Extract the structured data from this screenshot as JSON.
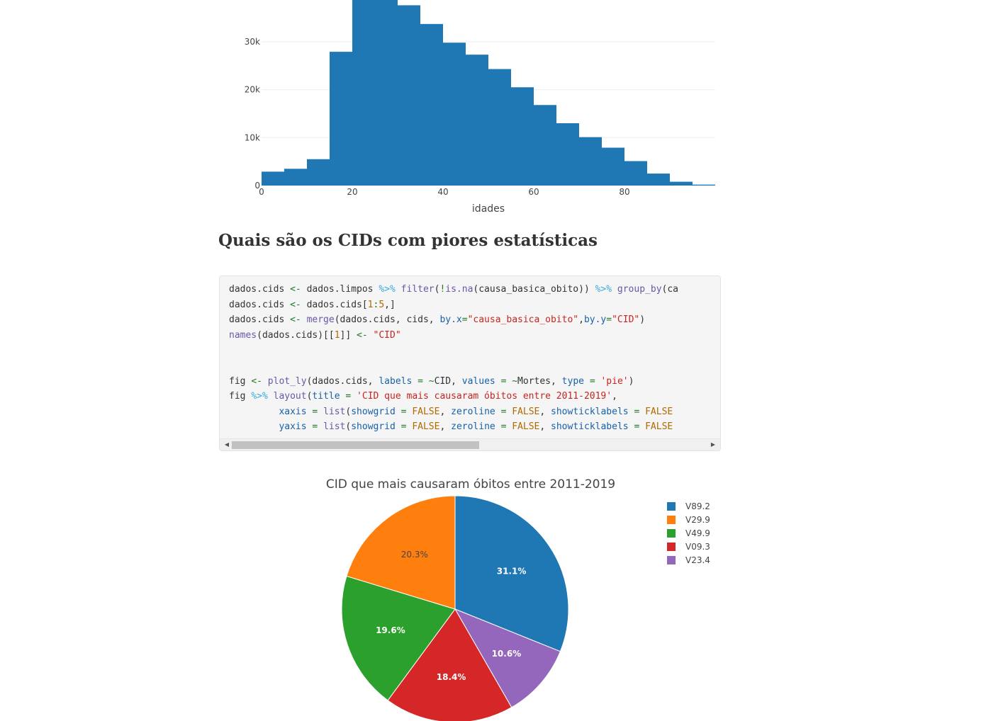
{
  "histogram": {
    "chart_data": {
      "type": "bar",
      "x": [
        2.5,
        7.5,
        12.5,
        17.5,
        22.5,
        27.5,
        32.5,
        37.5,
        42.5,
        47.5,
        52.5,
        57.5,
        62.5,
        67.5,
        72.5,
        77.5,
        82.5,
        87.5,
        92.5,
        97.5
      ],
      "values": [
        2900,
        3500,
        5500,
        27900,
        39000,
        39000,
        37600,
        33700,
        29800,
        27300,
        24300,
        20500,
        16800,
        13000,
        10100,
        7900,
        5100,
        2500,
        800,
        200
      ],
      "bin_width": 5,
      "xlabel": "idades",
      "x_ticks": [
        0,
        20,
        40,
        60,
        80
      ],
      "y_ticks": [
        0,
        10000,
        20000,
        30000
      ],
      "y_tick_labels": [
        "0",
        "10k",
        "20k",
        "30k"
      ],
      "xlim": [
        0,
        100
      ],
      "grid": true,
      "color": "#1f77b4"
    }
  },
  "section": {
    "heading": "Quais são os CIDs com piores estatísticas"
  },
  "code_block": {
    "lines": [
      [
        {
          "t": "dados.cids ",
          "c": ""
        },
        {
          "t": "<-",
          "c": "op"
        },
        {
          "t": " dados.limpos ",
          "c": ""
        },
        {
          "t": "%>%",
          "c": "pipe"
        },
        {
          "t": " ",
          "c": ""
        },
        {
          "t": "filter",
          "c": "fn"
        },
        {
          "t": "(",
          "c": ""
        },
        {
          "t": "!",
          "c": "op"
        },
        {
          "t": "is.na",
          "c": "fn"
        },
        {
          "t": "(causa_basica_obito)) ",
          "c": ""
        },
        {
          "t": "%>%",
          "c": "pipe"
        },
        {
          "t": " ",
          "c": ""
        },
        {
          "t": "group_by",
          "c": "fn"
        },
        {
          "t": "(ca",
          "c": ""
        }
      ],
      [
        {
          "t": "dados.cids ",
          "c": ""
        },
        {
          "t": "<-",
          "c": "op"
        },
        {
          "t": " dados.cids[",
          "c": ""
        },
        {
          "t": "1",
          "c": "num"
        },
        {
          "t": ":",
          "c": "op"
        },
        {
          "t": "5",
          "c": "num"
        },
        {
          "t": ",]",
          "c": ""
        }
      ],
      [
        {
          "t": "dados.cids ",
          "c": ""
        },
        {
          "t": "<-",
          "c": "op"
        },
        {
          "t": " ",
          "c": ""
        },
        {
          "t": "merge",
          "c": "fn"
        },
        {
          "t": "(dados.cids, cids, ",
          "c": ""
        },
        {
          "t": "by.x",
          "c": "kw"
        },
        {
          "t": "=",
          "c": "op"
        },
        {
          "t": "\"causa_basica_obito\"",
          "c": "str"
        },
        {
          "t": ",",
          "c": ""
        },
        {
          "t": "by.y",
          "c": "kw"
        },
        {
          "t": "=",
          "c": "op"
        },
        {
          "t": "\"CID\"",
          "c": "str"
        },
        {
          "t": ")",
          "c": ""
        }
      ],
      [
        {
          "t": "names",
          "c": "fn"
        },
        {
          "t": "(dados.cids)[[",
          "c": ""
        },
        {
          "t": "1",
          "c": "num"
        },
        {
          "t": "]] ",
          "c": ""
        },
        {
          "t": "<-",
          "c": "op"
        },
        {
          "t": " ",
          "c": ""
        },
        {
          "t": "\"CID\"",
          "c": "str"
        }
      ],
      [],
      [],
      [
        {
          "t": "fig ",
          "c": ""
        },
        {
          "t": "<-",
          "c": "op"
        },
        {
          "t": " ",
          "c": ""
        },
        {
          "t": "plot_ly",
          "c": "fn"
        },
        {
          "t": "(dados.cids, ",
          "c": ""
        },
        {
          "t": "labels",
          "c": "kw"
        },
        {
          "t": " ",
          "c": ""
        },
        {
          "t": "=",
          "c": "op"
        },
        {
          "t": " ",
          "c": ""
        },
        {
          "t": "~",
          "c": "op"
        },
        {
          "t": "CID, ",
          "c": ""
        },
        {
          "t": "values",
          "c": "kw"
        },
        {
          "t": " ",
          "c": ""
        },
        {
          "t": "=",
          "c": "op"
        },
        {
          "t": " ",
          "c": ""
        },
        {
          "t": "~",
          "c": "op"
        },
        {
          "t": "Mortes, ",
          "c": ""
        },
        {
          "t": "type",
          "c": "kw"
        },
        {
          "t": " ",
          "c": ""
        },
        {
          "t": "=",
          "c": "op"
        },
        {
          "t": " ",
          "c": ""
        },
        {
          "t": "'pie'",
          "c": "str"
        },
        {
          "t": ")",
          "c": ""
        }
      ],
      [
        {
          "t": "fig ",
          "c": ""
        },
        {
          "t": "%>%",
          "c": "pipe"
        },
        {
          "t": " ",
          "c": ""
        },
        {
          "t": "layout",
          "c": "fn"
        },
        {
          "t": "(",
          "c": ""
        },
        {
          "t": "title",
          "c": "kw"
        },
        {
          "t": " ",
          "c": ""
        },
        {
          "t": "=",
          "c": "op"
        },
        {
          "t": " ",
          "c": ""
        },
        {
          "t": "'CID que mais causaram óbitos entre 2011-2019'",
          "c": "str"
        },
        {
          "t": ",",
          "c": ""
        }
      ],
      [
        {
          "t": "         ",
          "c": ""
        },
        {
          "t": "xaxis",
          "c": "kw"
        },
        {
          "t": " ",
          "c": ""
        },
        {
          "t": "=",
          "c": "op"
        },
        {
          "t": " ",
          "c": ""
        },
        {
          "t": "list",
          "c": "fn"
        },
        {
          "t": "(",
          "c": ""
        },
        {
          "t": "showgrid",
          "c": "kw"
        },
        {
          "t": " ",
          "c": ""
        },
        {
          "t": "=",
          "c": "op"
        },
        {
          "t": " ",
          "c": ""
        },
        {
          "t": "FALSE",
          "c": "const"
        },
        {
          "t": ", ",
          "c": ""
        },
        {
          "t": "zeroline",
          "c": "kw"
        },
        {
          "t": " ",
          "c": ""
        },
        {
          "t": "=",
          "c": "op"
        },
        {
          "t": " ",
          "c": ""
        },
        {
          "t": "FALSE",
          "c": "const"
        },
        {
          "t": ", ",
          "c": ""
        },
        {
          "t": "showticklabels",
          "c": "kw"
        },
        {
          "t": " ",
          "c": ""
        },
        {
          "t": "=",
          "c": "op"
        },
        {
          "t": " ",
          "c": ""
        },
        {
          "t": "FALSE",
          "c": "const"
        }
      ],
      [
        {
          "t": "         ",
          "c": ""
        },
        {
          "t": "yaxis",
          "c": "kw"
        },
        {
          "t": " ",
          "c": ""
        },
        {
          "t": "=",
          "c": "op"
        },
        {
          "t": " ",
          "c": ""
        },
        {
          "t": "list",
          "c": "fn"
        },
        {
          "t": "(",
          "c": ""
        },
        {
          "t": "showgrid",
          "c": "kw"
        },
        {
          "t": " ",
          "c": ""
        },
        {
          "t": "=",
          "c": "op"
        },
        {
          "t": " ",
          "c": ""
        },
        {
          "t": "FALSE",
          "c": "const"
        },
        {
          "t": ", ",
          "c": ""
        },
        {
          "t": "zeroline",
          "c": "kw"
        },
        {
          "t": " ",
          "c": ""
        },
        {
          "t": "=",
          "c": "op"
        },
        {
          "t": " ",
          "c": ""
        },
        {
          "t": "FALSE",
          "c": "const"
        },
        {
          "t": ", ",
          "c": ""
        },
        {
          "t": "showticklabels",
          "c": "kw"
        },
        {
          "t": " ",
          "c": ""
        },
        {
          "t": "=",
          "c": "op"
        },
        {
          "t": " ",
          "c": ""
        },
        {
          "t": "FALSE",
          "c": "const"
        }
      ]
    ],
    "scroll_left_icon": "◀",
    "scroll_right_icon": "▶",
    "scroll_thumb_fraction": 0.52
  },
  "pie": {
    "chart_data": {
      "type": "pie",
      "title": "CID que mais causaram óbitos entre 2011-2019",
      "slices": [
        {
          "label": "V89.2",
          "percent": 31.1,
          "text": "31.1%",
          "color": "#1f77b4",
          "text_color": "#ffffff"
        },
        {
          "label": "V23.4",
          "percent": 10.6,
          "text": "10.6%",
          "color": "#9467bd",
          "text_color": "#ffffff"
        },
        {
          "label": "V09.3",
          "percent": 18.4,
          "text": "18.4%",
          "color": "#d62728",
          "text_color": "#ffffff"
        },
        {
          "label": "V49.9",
          "percent": 19.6,
          "text": "19.6%",
          "color": "#2ca02c",
          "text_color": "#ffffff"
        },
        {
          "label": "V29.9",
          "percent": 20.3,
          "text": "20.3%",
          "color": "#ff7f0e",
          "text_color": "#444444"
        }
      ],
      "legend_order": [
        "V89.2",
        "V29.9",
        "V49.9",
        "V09.3",
        "V23.4"
      ],
      "legend_placement": "top-right"
    }
  }
}
